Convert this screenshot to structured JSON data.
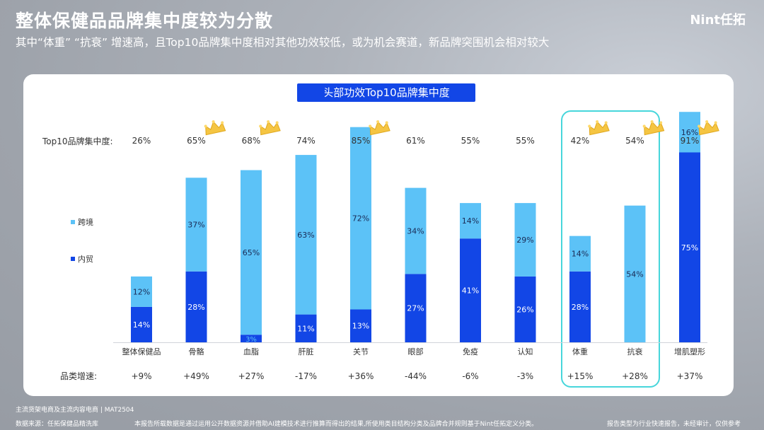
{
  "header": {
    "title": "整体保健品品牌集中度较为分散",
    "subtitle": "其中“体重” “抗衰” 增速高，且Top10品牌集中度相对其他功效较低，或为机会赛道，新品牌突围机会相对较大",
    "logo": "Nint任拓"
  },
  "chart_data": {
    "type": "bar",
    "stacked": true,
    "title": "头部功效Top10品牌集中度",
    "categories": [
      "整体保健品",
      "骨骼",
      "血脂",
      "肝脏",
      "关节",
      "眼部",
      "免疫",
      "认知",
      "体重",
      "抗衰",
      "增肌塑形"
    ],
    "series": [
      {
        "name": "内贸",
        "color": "#1246e6",
        "values": [
          14,
          28,
          3,
          11,
          13,
          27,
          41,
          26,
          28,
          0,
          75
        ]
      },
      {
        "name": "跨境",
        "color": "#5cc2f7",
        "values": [
          12,
          37,
          65,
          63,
          72,
          34,
          14,
          29,
          14,
          54,
          16
        ]
      }
    ],
    "concentration_label": "Top10品牌集中度:",
    "concentration": [
      "26%",
      "65%",
      "68%",
      "74%",
      "85%",
      "61%",
      "55%",
      "55%",
      "42%",
      "54%",
      "91%"
    ],
    "crowned": [
      false,
      true,
      true,
      false,
      true,
      false,
      false,
      false,
      true,
      true,
      true
    ],
    "growth_label": "品类增速:",
    "growth": [
      "+9%",
      "+49%",
      "+27%",
      "-17%",
      "+36%",
      "-44%",
      "-6%",
      "-3%",
      "+15%",
      "+28%",
      "+37%"
    ],
    "highlighted": [
      "体重",
      "抗衰"
    ],
    "legend": [
      "跨境",
      "内贸"
    ]
  },
  "footer": {
    "scope": "主流货架电商及主流内容电商 | MAT2504",
    "source": "数据来源：任拓保健品精洗库",
    "disclaimer": "本报告所载数据是通过运用公开数据资源并借助AI建模技术进行推算而得出的结果,所使用类目结构分类及品牌合并规则基于Nint任拓定义分类。",
    "note": "报告类型为行业快速报告，未经审计，仅供参考"
  }
}
